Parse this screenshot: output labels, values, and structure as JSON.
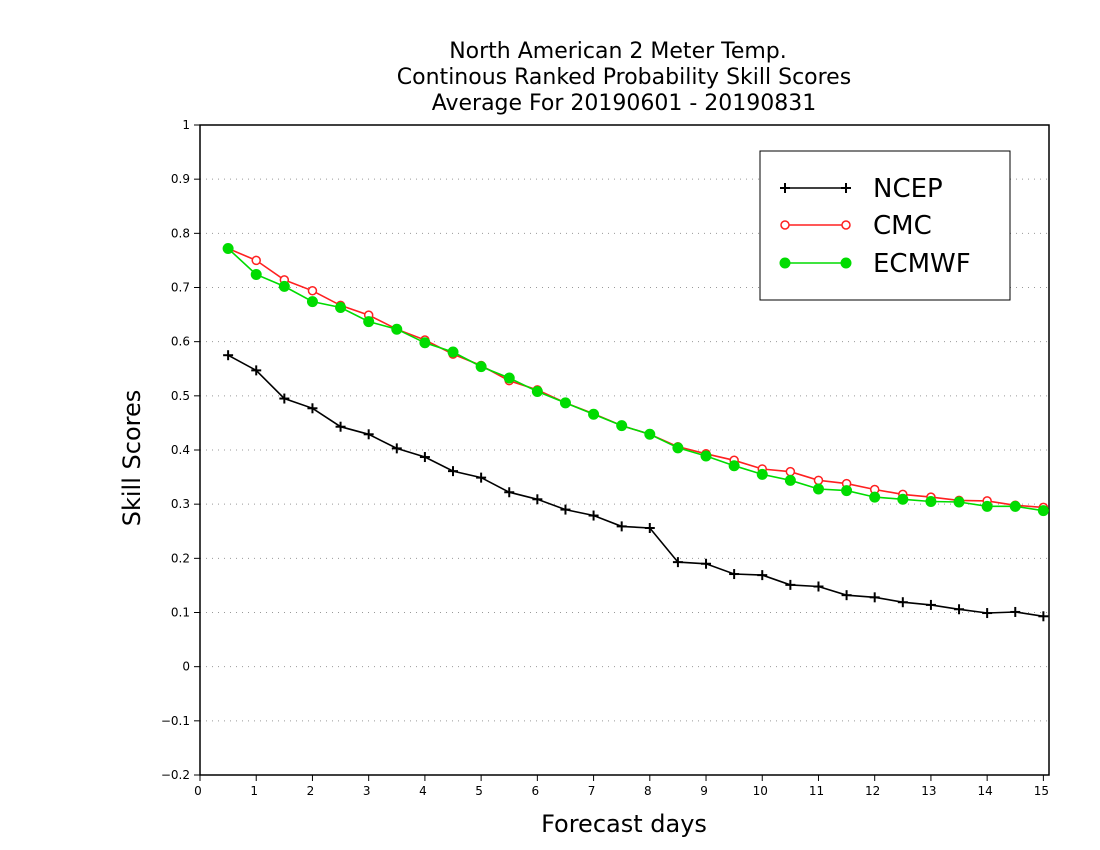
{
  "chart_data": {
    "type": "line",
    "title": [
      "North American 2 Meter Temp.",
      "Continous Ranked Probability Skill Scores",
      "Average For 20190601 - 20190831"
    ],
    "xlabel": "Forecast days",
    "ylabel": "Skill Scores",
    "xlim": [
      0,
      15.1
    ],
    "ylim": [
      -0.2,
      1
    ],
    "xticks": [
      0,
      1,
      2,
      3,
      4,
      5,
      6,
      7,
      8,
      9,
      10,
      11,
      12,
      13,
      14,
      15
    ],
    "xtick_labels": [
      "0",
      "1",
      "2",
      "3",
      "4",
      "5",
      "6",
      "7",
      "8",
      "9",
      "10",
      "11",
      "12",
      "13",
      "14",
      "15"
    ],
    "yticks": [
      -0.2,
      -0.1,
      0,
      0.1,
      0.2,
      0.3,
      0.4,
      0.5,
      0.6,
      0.7,
      0.8,
      0.9,
      1
    ],
    "ytick_labels": [
      "-0.2",
      "-0.1",
      "0",
      "0.1",
      "0.2",
      "0.3",
      "0.4",
      "0.5",
      "0.6",
      "0.7",
      "0.8",
      "0.9",
      "1"
    ],
    "grid": "horizontal dotted",
    "legend_position": "top-right",
    "x": [
      0.5,
      1,
      1.5,
      2,
      2.5,
      3,
      3.5,
      4,
      4.5,
      5,
      5.5,
      6,
      6.5,
      7,
      7.5,
      8,
      8.5,
      9,
      9.5,
      10,
      10.5,
      11,
      11.5,
      12,
      12.5,
      13,
      13.5,
      14,
      14.5,
      15
    ],
    "series": [
      {
        "name": "NCEP",
        "color": "#000000",
        "marker": "plus",
        "values": [
          0.575,
          0.547,
          0.495,
          0.477,
          0.443,
          0.429,
          0.403,
          0.387,
          0.361,
          0.349,
          0.322,
          0.309,
          0.29,
          0.279,
          0.259,
          0.256,
          0.193,
          0.19,
          0.171,
          0.169,
          0.151,
          0.148,
          0.132,
          0.128,
          0.119,
          0.114,
          0.106,
          0.099,
          0.101,
          0.093
        ]
      },
      {
        "name": "CMC",
        "color": "#ff2020",
        "marker": "open-circle",
        "values": [
          0.772,
          0.75,
          0.714,
          0.694,
          0.667,
          0.649,
          0.623,
          0.603,
          0.577,
          0.556,
          0.528,
          0.511,
          0.487,
          0.467,
          0.445,
          0.429,
          0.406,
          0.393,
          0.381,
          0.365,
          0.36,
          0.344,
          0.338,
          0.327,
          0.318,
          0.313,
          0.307,
          0.306,
          0.298,
          0.294
        ]
      },
      {
        "name": "ECMWF",
        "color": "#00dc00",
        "marker": "filled-circle",
        "values": [
          0.772,
          0.724,
          0.702,
          0.674,
          0.663,
          0.637,
          0.623,
          0.598,
          0.581,
          0.554,
          0.533,
          0.508,
          0.487,
          0.466,
          0.445,
          0.429,
          0.404,
          0.389,
          0.371,
          0.355,
          0.344,
          0.328,
          0.325,
          0.313,
          0.309,
          0.305,
          0.304,
          0.296,
          0.296,
          0.288
        ]
      }
    ]
  }
}
